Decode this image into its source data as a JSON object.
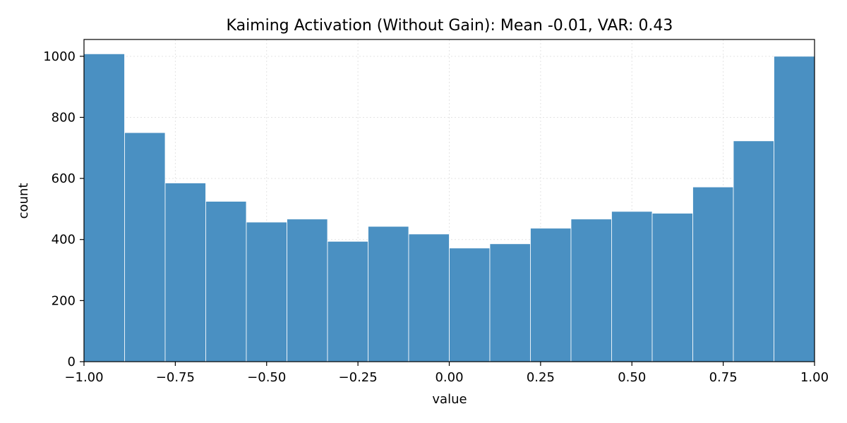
{
  "chart_data": {
    "type": "bar",
    "title": "Kaiming Activation (Without Gain): Mean -0.01, VAR: 0.43",
    "xlabel": "value",
    "ylabel": "count",
    "xlim": [
      -1.0,
      1.0
    ],
    "ylim": [
      0,
      1055
    ],
    "grid": true,
    "bar_color": "#4a90c2",
    "bin_edges": [
      -1.0,
      -0.8889,
      -0.7778,
      -0.6667,
      -0.5556,
      -0.4444,
      -0.3333,
      -0.2222,
      -0.1111,
      0.0,
      0.1111,
      0.2222,
      0.3333,
      0.4444,
      0.5556,
      0.6667,
      0.7778,
      0.8889,
      1.0
    ],
    "values": [
      1008,
      750,
      585,
      525,
      457,
      467,
      394,
      443,
      418,
      372,
      386,
      437,
      467,
      492,
      486,
      572,
      723,
      1000
    ],
    "xticks": [
      -1.0,
      -0.75,
      -0.5,
      -0.25,
      0.0,
      0.25,
      0.5,
      0.75,
      1.0
    ],
    "xtick_labels": [
      "−1.00",
      "−0.75",
      "−0.50",
      "−0.25",
      "0.00",
      "0.25",
      "0.50",
      "0.75",
      "1.00"
    ],
    "yticks": [
      0,
      200,
      400,
      600,
      800,
      1000
    ],
    "ytick_labels": [
      "0",
      "200",
      "400",
      "600",
      "800",
      "1000"
    ]
  }
}
